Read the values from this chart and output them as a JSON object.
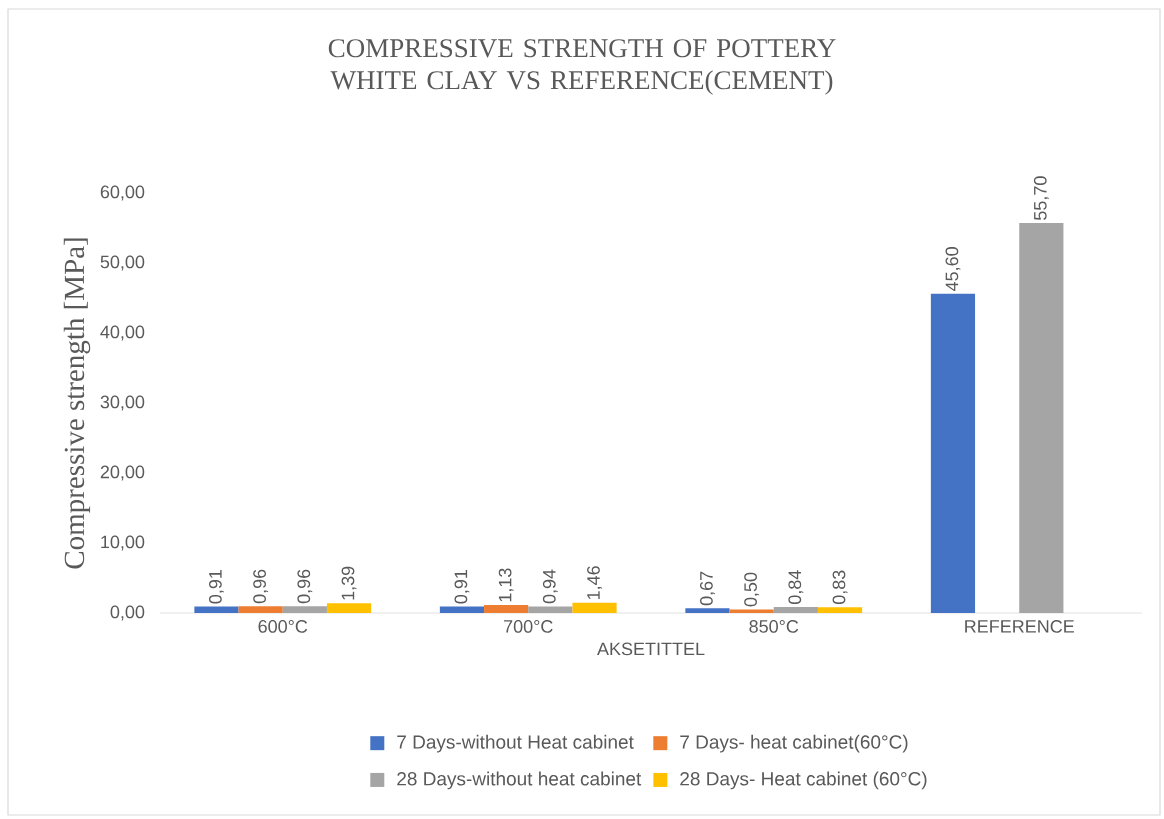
{
  "chart_data": {
    "type": "bar",
    "title": "COMPRESSIVE STRENGTH OF POTTERY WHITE CLAY VS REFERENCE(CEMENT)",
    "xlabel": "AKSETITTEL",
    "ylabel": "Compressive strength [MPa]",
    "categories": [
      "600°C",
      "700°C",
      "850°C",
      "REFERENCE"
    ],
    "ylim": [
      0,
      60
    ],
    "yticks": [
      {
        "value": 0,
        "label": "0,00"
      },
      {
        "value": 10,
        "label": "10,00"
      },
      {
        "value": 20,
        "label": "20,00"
      },
      {
        "value": 30,
        "label": "30,00"
      },
      {
        "value": 40,
        "label": "40,00"
      },
      {
        "value": 50,
        "label": "50,00"
      },
      {
        "value": 60,
        "label": "60,00"
      }
    ],
    "legend": "bottom",
    "series": [
      {
        "name": "7 Days-without Heat cabinet",
        "color": "#4472c4",
        "values": [
          0.91,
          0.91,
          0.67,
          45.6
        ],
        "value_labels": [
          "0,91",
          "0,91",
          "0,67",
          "45,60"
        ]
      },
      {
        "name": "7 Days- heat cabinet(60°C)",
        "color": "#ed7d31",
        "values": [
          0.96,
          1.13,
          0.5,
          null
        ],
        "value_labels": [
          "0,96",
          "1,13",
          "0,50",
          null
        ]
      },
      {
        "name": "28 Days-without heat cabinet",
        "color": "#a5a5a5",
        "values": [
          0.96,
          0.94,
          0.84,
          55.7
        ],
        "value_labels": [
          "0,96",
          "0,94",
          "0,84",
          "55,70"
        ]
      },
      {
        "name": "28 Days- Heat cabinet (60°C)",
        "color": "#ffc000",
        "values": [
          1.39,
          1.46,
          0.83,
          null
        ],
        "value_labels": [
          "1,39",
          "1,46",
          "0,83",
          null
        ]
      }
    ]
  }
}
